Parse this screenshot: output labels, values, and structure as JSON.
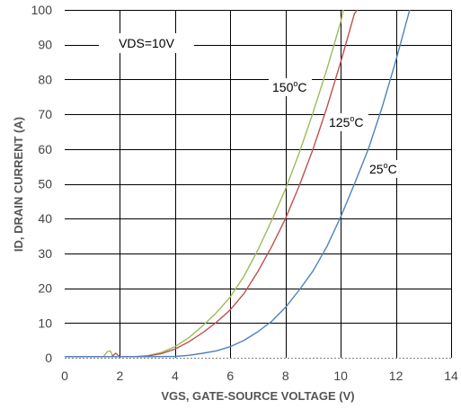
{
  "chart_data": {
    "type": "line",
    "title": "",
    "xlabel": "VGS, GATE-SOURCE VOLTAGE (V)",
    "ylabel": "ID, DRAIN CURRENT (A)",
    "xlim": [
      0,
      14
    ],
    "ylim": [
      0,
      100
    ],
    "xticks": [
      "0",
      "2",
      "4",
      "6",
      "8",
      "10",
      "12",
      "14"
    ],
    "yticks": [
      "0",
      "10",
      "20",
      "30",
      "40",
      "50",
      "60",
      "70",
      "80",
      "90",
      "100"
    ],
    "grid": true,
    "annotations": {
      "condition": "VDS=10V",
      "t150": {
        "main": "150",
        "sup": "o",
        "unit": "C"
      },
      "t125": {
        "main": "125",
        "sup": "o",
        "unit": "C"
      },
      "t25": {
        "main": "25",
        "sup": "o",
        "unit": "C"
      }
    },
    "series": [
      {
        "color": "#9bbb59",
        "x": [
          0,
          1.4,
          1.55,
          1.65,
          1.75,
          2.5,
          3,
          3.5,
          4,
          4.5,
          5,
          5.5,
          6,
          6.5,
          7,
          7.5,
          8,
          8.5,
          9,
          9.5,
          10,
          10.1
        ],
        "y": [
          0.3,
          0.3,
          1.8,
          2.0,
          0.3,
          0.3,
          0.6,
          1.5,
          3.2,
          5.8,
          9.2,
          13.0,
          17.5,
          23.5,
          31.0,
          39.5,
          48.5,
          59.0,
          70.5,
          83.0,
          96.5,
          100
        ]
      },
      {
        "color": "#c0504d",
        "x": [
          0,
          1.7,
          1.85,
          2.0,
          2.5,
          3,
          3.5,
          4,
          4.5,
          5,
          5.5,
          6,
          6.5,
          7,
          7.5,
          8,
          8.5,
          9,
          9.5,
          10,
          10.5,
          10.6
        ],
        "y": [
          0.3,
          0.3,
          1.3,
          0.3,
          0.3,
          0.5,
          1.2,
          2.5,
          4.6,
          7.2,
          10.2,
          13.8,
          18.5,
          24.8,
          32.0,
          40.0,
          49.5,
          60.0,
          72.0,
          85.0,
          99.0,
          100
        ]
      },
      {
        "color": "#4f81bd",
        "x": [
          0,
          3,
          4,
          4.5,
          5,
          5.5,
          6,
          6.5,
          7,
          7.5,
          8,
          8.5,
          9,
          9.5,
          10,
          10.5,
          11,
          11.5,
          12,
          12.5
        ],
        "y": [
          0.3,
          0.3,
          0.4,
          0.7,
          1.3,
          2.0,
          3.2,
          5.0,
          7.5,
          10.5,
          14.5,
          19.5,
          25.0,
          32.0,
          40.5,
          50.0,
          60.0,
          72.0,
          85.5,
          100
        ]
      }
    ]
  }
}
